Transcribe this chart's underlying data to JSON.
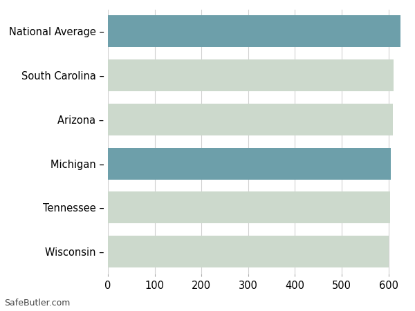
{
  "categories": [
    "Wisconsin",
    "Tennessee",
    "Michigan",
    "Arizona",
    "South Carolina",
    "National Average"
  ],
  "values": [
    601,
    603,
    605,
    610,
    611,
    625
  ],
  "bar_colors": [
    "#ccd9cc",
    "#ccd9cc",
    "#6d9faa",
    "#ccd9cc",
    "#ccd9cc",
    "#6d9faa"
  ],
  "xlim": [
    0,
    630
  ],
  "xticks": [
    0,
    100,
    200,
    300,
    400,
    500,
    600
  ],
  "background_color": "#ffffff",
  "grid_color": "#d0d0d0",
  "bar_height": 0.72,
  "tick_label_fontsize": 10.5,
  "watermark": "SafeButler.com",
  "watermark_fontsize": 9,
  "label_suffix": " –"
}
